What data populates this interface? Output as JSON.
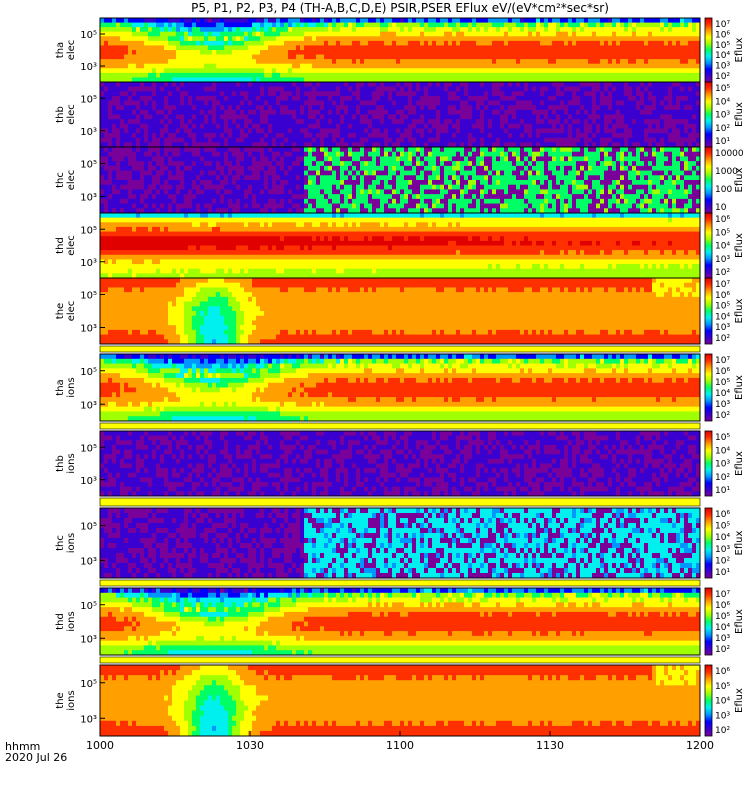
{
  "title": "P5, P1, P2, P3, P4 (TH-A,B,C,D,E) PSIR,PSER EFlux eV/(eV*cm²*sec*sr)",
  "x_axis_label": "hhmm",
  "date_label": "2020 Jul 26",
  "colors": {
    "colormap": [
      "#7a009a",
      "#3a00d0",
      "#0000ff",
      "#0096ff",
      "#00f0f0",
      "#00ff64",
      "#a0ff00",
      "#ffff00",
      "#ffa000",
      "#ff3000",
      "#e00000"
    ],
    "frame": "#000000",
    "separator": "#ffff00"
  },
  "chart_data": {
    "type": "heatmap",
    "x_ticks": [
      "1000",
      "1030",
      "1100",
      "1130",
      "1200"
    ],
    "x_range_hhmm": [
      "1000",
      "1200"
    ],
    "panels": [
      {
        "id": "tha-elec",
        "label": [
          "tha",
          "elec"
        ],
        "y_ticks": [
          "10⁵",
          "10³"
        ],
        "cbar_label": "Eflux",
        "cbar_ticks": [
          "10⁷",
          "10⁶",
          "10⁵",
          "10⁴",
          "10³",
          "10²"
        ],
        "pattern": "smooth",
        "hi": 9.0,
        "lo": 4.0
      },
      {
        "id": "thb-elec",
        "label": [
          "thb",
          "elec"
        ],
        "y_ticks": [
          "10⁵",
          "10³"
        ],
        "cbar_label": "Eflux",
        "cbar_ticks": [
          "10⁵",
          "10⁴",
          "10³",
          "10²",
          "10¹"
        ],
        "pattern": "noise-purple"
      },
      {
        "id": "thc-elec",
        "label": [
          "thc",
          "elec"
        ],
        "y_ticks": [
          "10⁵",
          "10³"
        ],
        "cbar_label": "Eflux",
        "cbar_ticks": [
          "10000",
          "1000",
          "100",
          "10"
        ],
        "pattern": "noise-split"
      },
      {
        "id": "thd-elec",
        "label": [
          "thd",
          "elec"
        ],
        "y_ticks": [
          "10⁵",
          "10³"
        ],
        "cbar_label": "Eflux",
        "cbar_ticks": [
          "10⁶",
          "10⁵",
          "10⁴",
          "10³",
          "10²"
        ],
        "pattern": "red-core"
      },
      {
        "id": "the-elec",
        "label": [
          "the",
          "elec"
        ],
        "y_ticks": [
          "10⁵",
          "10³"
        ],
        "cbar_label": "Eflux",
        "cbar_ticks": [
          "10⁷",
          "10⁶",
          "10⁵",
          "10⁴",
          "10³",
          "10²"
        ],
        "pattern": "the"
      },
      {
        "id": "tha-ions",
        "label": [
          "tha",
          "ions"
        ],
        "y_ticks": [
          "10⁵",
          "10³"
        ],
        "cbar_label": "Eflux",
        "cbar_ticks": [
          "10⁷",
          "10⁶",
          "10⁵",
          "10⁴",
          "10³",
          "10²"
        ],
        "pattern": "smooth",
        "hi": 8.0,
        "lo": 5.0
      },
      {
        "id": "thb-ions",
        "label": [
          "thb",
          "ions"
        ],
        "y_ticks": [
          "10⁵",
          "10³"
        ],
        "cbar_label": "Eflux",
        "cbar_ticks": [
          "10⁵",
          "10⁴",
          "10³",
          "10²",
          "10¹"
        ],
        "pattern": "noise-purple"
      },
      {
        "id": "thc-ions",
        "label": [
          "thc",
          "ions"
        ],
        "y_ticks": [
          "10⁵",
          "10³"
        ],
        "cbar_label": "Eflux",
        "cbar_ticks": [
          "10⁶",
          "10⁵",
          "10⁴",
          "10³",
          "10²",
          "10¹"
        ],
        "pattern": "noise-cyan"
      },
      {
        "id": "thd-ions",
        "label": [
          "thd",
          "ions"
        ],
        "y_ticks": [
          "10⁵",
          "10³"
        ],
        "cbar_label": "Eflux",
        "cbar_ticks": [
          "10⁷",
          "10⁶",
          "10⁵",
          "10⁴",
          "10³",
          "10²"
        ],
        "pattern": "smooth",
        "hi": 7.0,
        "lo": 5.0
      },
      {
        "id": "the-ions",
        "label": [
          "the",
          "ions"
        ],
        "y_ticks": [
          "10⁵",
          "10³"
        ],
        "cbar_label": "Eflux",
        "cbar_ticks": [
          "10⁶",
          "10⁵",
          "10⁴",
          "10³",
          "10²"
        ],
        "pattern": "the"
      }
    ]
  }
}
